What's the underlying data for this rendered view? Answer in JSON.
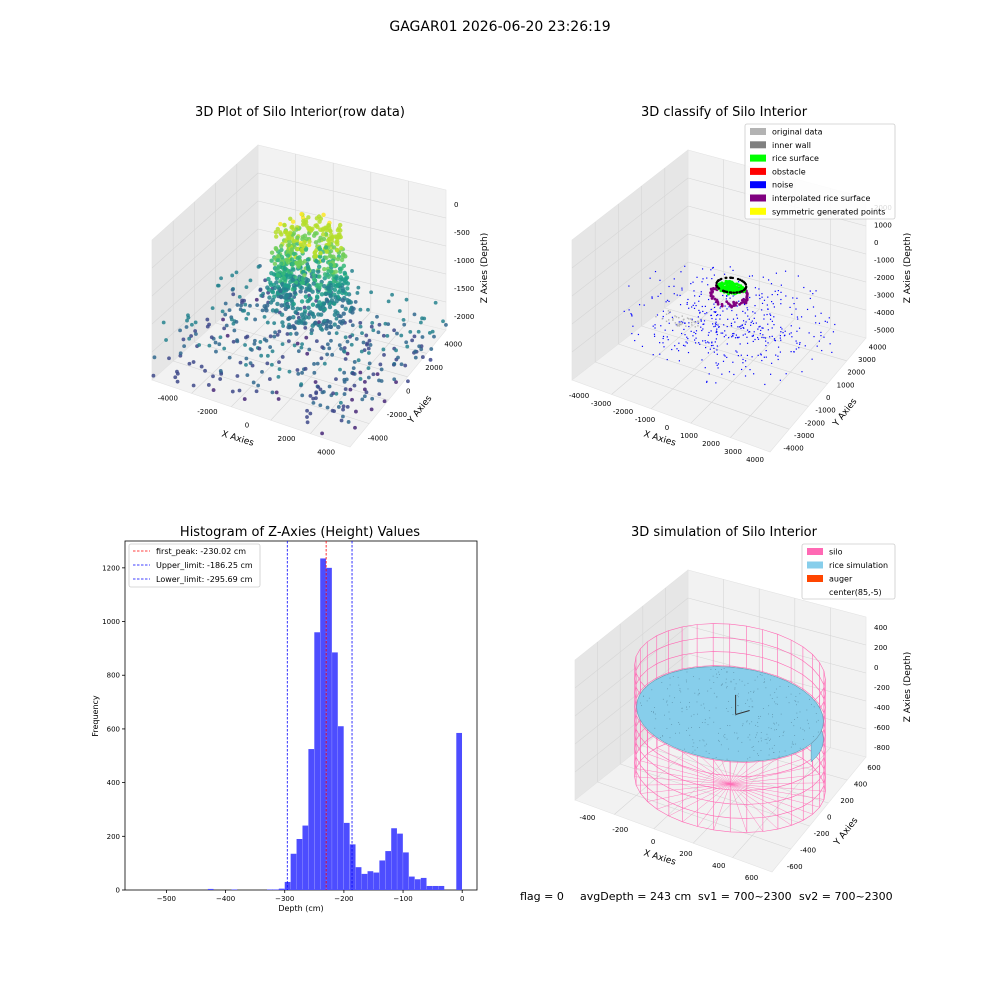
{
  "figure_title": "GAGAR01 2026-06-20 23:26:19",
  "status_line": {
    "flag": "flag = 0",
    "avg": "avgDepth = 243 cm",
    "sv1": "sv1 = 700~2300",
    "sv2": "sv2 = 700~2300"
  },
  "colors": {
    "original_data": "#b3b3b3",
    "inner_wall": "#808080",
    "rice_surface": "#00ff00",
    "obstacle": "#ff0000",
    "noise": "#0000ff",
    "interpolated_rice_surface": "#800080",
    "symmetric_generated_points": "#ffff00",
    "silo": "#ff69b4",
    "rice_simulation": "#87ceeb",
    "auger": "#ff4500",
    "hist_bar": "#4d4dff",
    "first_peak": "#ff0000",
    "limits": "#0000ff"
  },
  "chart_data": [
    {
      "type": "scatter",
      "subtype": "scatter3d",
      "title": "3D Plot of Silo Interior(row data)",
      "xlabel": "X Axies",
      "ylabel": "Y Axies",
      "zlabel": "Z Axies (Depth)",
      "x_ticks": [
        "-4000",
        "-2000",
        "0",
        "2000",
        "4000"
      ],
      "y_ticks": [
        "-4000",
        "-2000",
        "0",
        "2000",
        "4000"
      ],
      "z_ticks": [
        "0",
        "-500",
        "-1000",
        "-1500",
        "-2000"
      ],
      "xlim": [
        -4500,
        4500
      ],
      "ylim": [
        -4500,
        4500
      ],
      "zlim": [
        -2300,
        100
      ],
      "colormap": "viridis",
      "grid": true
    },
    {
      "type": "scatter",
      "subtype": "scatter3d",
      "title": "3D classify of Silo Interior",
      "xlabel": "X Axies",
      "ylabel": "Y Axies",
      "zlabel": "Z Axies (Depth)",
      "x_ticks": [
        "-4000",
        "-3000",
        "-2000",
        "-1000",
        "0",
        "1000",
        "2000",
        "3000",
        "4000"
      ],
      "y_ticks": [
        "-4000",
        "-3000",
        "-2000",
        "-1000",
        "0",
        "1000",
        "2000",
        "3000",
        "4000"
      ],
      "z_ticks": [
        "2000",
        "1000",
        "0",
        "-1000",
        "-2000",
        "-3000",
        "-4000",
        "-5000"
      ],
      "xlim": [
        -4200,
        4300
      ],
      "ylim": [
        -4200,
        4300
      ],
      "zlim": [
        -5500,
        2800
      ],
      "legend": [
        "original data",
        "inner wall",
        "rice surface",
        "obstacle",
        "noise",
        "interpolated rice surface",
        "symmetric generated points"
      ],
      "legend_position": "top-right",
      "grid": true
    },
    {
      "type": "bar",
      "subtype": "histogram",
      "title": "Histogram of Z-Axies (Height) Values",
      "xlabel": "Depth (cm)",
      "ylabel": "Frequency",
      "xlim": [
        -570,
        25
      ],
      "ylim": [
        0,
        1300
      ],
      "x_ticks": [
        -500,
        -400,
        -300,
        -200,
        -100,
        0
      ],
      "y_ticks": [
        0,
        200,
        400,
        600,
        800,
        1000,
        1200
      ],
      "bin_width": 10,
      "bins": [
        {
          "x0": -430,
          "count": 4
        },
        {
          "x0": -390,
          "count": 2
        },
        {
          "x0": -330,
          "count": 2
        },
        {
          "x0": -320,
          "count": 2
        },
        {
          "x0": -310,
          "count": 5
        },
        {
          "x0": -300,
          "count": 30
        },
        {
          "x0": -290,
          "count": 135
        },
        {
          "x0": -280,
          "count": 190
        },
        {
          "x0": -270,
          "count": 240
        },
        {
          "x0": -260,
          "count": 525
        },
        {
          "x0": -250,
          "count": 960
        },
        {
          "x0": -240,
          "count": 1235
        },
        {
          "x0": -230,
          "count": 1200
        },
        {
          "x0": -220,
          "count": 885
        },
        {
          "x0": -210,
          "count": 610
        },
        {
          "x0": -200,
          "count": 250
        },
        {
          "x0": -190,
          "count": 170
        },
        {
          "x0": -180,
          "count": 85
        },
        {
          "x0": -170,
          "count": 60
        },
        {
          "x0": -160,
          "count": 70
        },
        {
          "x0": -150,
          "count": 65
        },
        {
          "x0": -140,
          "count": 110
        },
        {
          "x0": -130,
          "count": 145
        },
        {
          "x0": -120,
          "count": 230
        },
        {
          "x0": -110,
          "count": 210
        },
        {
          "x0": -100,
          "count": 140
        },
        {
          "x0": -90,
          "count": 50
        },
        {
          "x0": -80,
          "count": 40
        },
        {
          "x0": -70,
          "count": 45
        },
        {
          "x0": -60,
          "count": 15
        },
        {
          "x0": -50,
          "count": 15
        },
        {
          "x0": -40,
          "count": 15
        },
        {
          "x0": -10,
          "count": 585
        }
      ],
      "lines": [
        {
          "label": "first_peak: -230.02 cm",
          "x": -230.02,
          "style": "red-dashed"
        },
        {
          "label": "Upper_limit: -186.25 cm",
          "x": -186.25,
          "style": "blue-dashed"
        },
        {
          "label": "Lower_limit: -295.69 cm",
          "x": -295.69,
          "style": "blue-dashed"
        }
      ],
      "legend_position": "top-left",
      "grid": false
    },
    {
      "type": "scatter",
      "subtype": "surface3d",
      "title": "3D simulation of Silo Interior",
      "xlabel": "X Axies",
      "ylabel": "Y Axies",
      "zlabel": "Z Axies (Depth)",
      "x_ticks": [
        "-400",
        "-200",
        "0",
        "200",
        "400",
        "600"
      ],
      "y_ticks": [
        "-600",
        "-400",
        "-200",
        "0",
        "200",
        "400",
        "600"
      ],
      "z_ticks": [
        "400",
        "200",
        "0",
        "-200",
        "-400",
        "-600",
        "-800"
      ],
      "legend": [
        "silo",
        "rice simulation",
        "auger",
        "center(85,-5)"
      ],
      "legend_position": "top-right",
      "grid": true
    }
  ]
}
